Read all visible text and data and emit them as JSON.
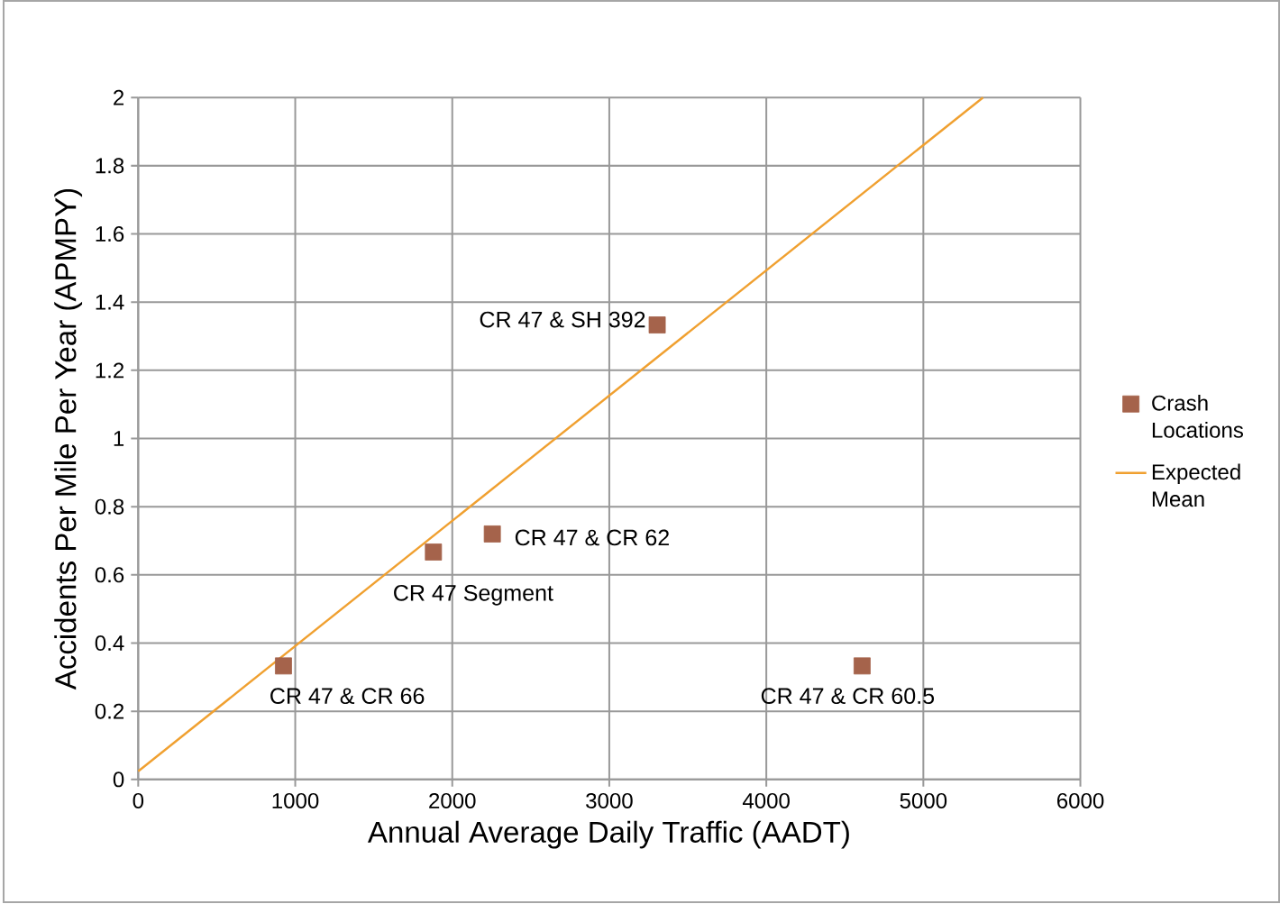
{
  "chart_data": {
    "type": "scatter",
    "xlabel": "Annual Average Daily Traffic (AADT)",
    "ylabel": "Accidents Per Mile Per Year (APMPY)",
    "xlim": [
      0,
      6000
    ],
    "xticks": [
      0,
      1000,
      2000,
      3000,
      4000,
      5000,
      6000
    ],
    "ylim": [
      0,
      2
    ],
    "yticks": [
      0,
      0.2,
      0.4,
      0.6,
      0.8,
      1,
      1.2,
      1.4,
      1.6,
      1.8,
      2
    ],
    "grid": true,
    "legend": "right",
    "marker": "square",
    "series": [
      {
        "name": "Crash Locations",
        "color": "#a5634b",
        "x": [
          925,
          1880,
          2255,
          3305,
          4610
        ],
        "values": [
          0.333,
          0.667,
          0.72,
          1.333,
          0.333
        ]
      },
      {
        "name": "Expected Mean",
        "type": "line",
        "color": "#f0a030",
        "marker": "none",
        "line_style": "solid",
        "x": [
          0,
          5380
        ],
        "values": [
          0.024,
          2
        ]
      }
    ],
    "annotations": [
      {
        "text": "CR 47 & CR 66",
        "x": 925,
        "y": 0.333
      },
      {
        "text": "CR 47 Segment",
        "x": 1880,
        "y": 0.667
      },
      {
        "text": "CR 47 & CR 62",
        "x": 2255,
        "y": 0.72
      },
      {
        "text": "CR 47 & SH 392",
        "x": 3305,
        "y": 1.333
      },
      {
        "text": "CR 47 & CR 60.5",
        "x": 4610,
        "y": 0.333
      }
    ]
  }
}
